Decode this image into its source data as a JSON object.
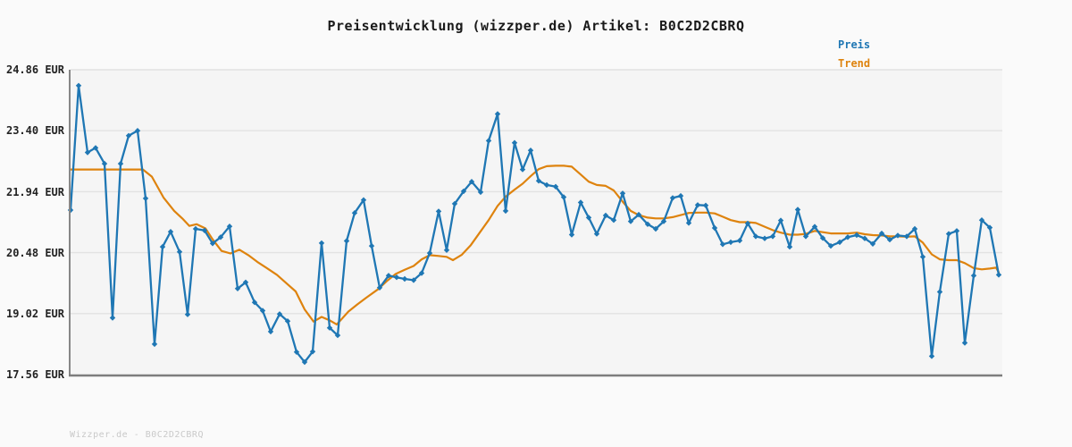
{
  "title": "Preisentwicklung (wizzper.de) Artikel: B0C2D2CBRQ",
  "watermark": "Wizzper.de - B0C2D2CBRQ",
  "legend": [
    {
      "label": "Preis",
      "color": "#1f77b4"
    },
    {
      "label": "Trend",
      "color": "#de830e"
    }
  ],
  "y_axis": {
    "unit": "EUR",
    "labels": [
      "24.86 EUR",
      "23.40 EUR",
      "21.94 EUR",
      "20.48 EUR",
      "19.02 EUR",
      "17.56 EUR"
    ],
    "values": [
      24.86,
      23.4,
      21.94,
      20.48,
      19.02,
      17.56
    ]
  },
  "chart_data": {
    "type": "line",
    "title": "Preisentwicklung (wizzper.de) Artikel: B0C2D2CBRQ",
    "xlabel": "",
    "ylabel": "EUR",
    "ylim": [
      17.56,
      24.86
    ],
    "x_axis_note": "time axis, no tick labels shown; x stored as plot pixel position",
    "grid": true,
    "legend_position": "top-right",
    "series": [
      {
        "name": "Preis",
        "color": "#1f77b4",
        "marker": "diamond",
        "points": [
          [
            79,
            21.5
          ],
          [
            88,
            24.48
          ],
          [
            98,
            22.88
          ],
          [
            107,
            22.99
          ],
          [
            117,
            22.61
          ],
          [
            126,
            18.92
          ],
          [
            135,
            22.61
          ],
          [
            144,
            23.28
          ],
          [
            154,
            23.4
          ],
          [
            163,
            21.78
          ],
          [
            173,
            18.29
          ],
          [
            182,
            20.62
          ],
          [
            191,
            20.98
          ],
          [
            201,
            20.5
          ],
          [
            210,
            19.0
          ],
          [
            219,
            21.05
          ],
          [
            229,
            21.01
          ],
          [
            238,
            20.7
          ],
          [
            247,
            20.85
          ],
          [
            257,
            21.11
          ],
          [
            266,
            19.62
          ],
          [
            275,
            19.77
          ],
          [
            285,
            19.29
          ],
          [
            294,
            19.09
          ],
          [
            303,
            18.59
          ],
          [
            313,
            19.01
          ],
          [
            322,
            18.84
          ],
          [
            332,
            18.1
          ],
          [
            341,
            17.86
          ],
          [
            350,
            18.11
          ],
          [
            360,
            20.71
          ],
          [
            369,
            18.68
          ],
          [
            378,
            18.5
          ],
          [
            388,
            20.76
          ],
          [
            397,
            21.43
          ],
          [
            407,
            21.74
          ],
          [
            416,
            20.64
          ],
          [
            425,
            19.64
          ],
          [
            435,
            19.93
          ],
          [
            444,
            19.89
          ],
          [
            453,
            19.85
          ],
          [
            463,
            19.82
          ],
          [
            472,
            19.99
          ],
          [
            481,
            20.47
          ],
          [
            491,
            21.47
          ],
          [
            500,
            20.54
          ],
          [
            509,
            21.65
          ],
          [
            519,
            21.95
          ],
          [
            528,
            22.18
          ],
          [
            538,
            21.93
          ],
          [
            547,
            23.16
          ],
          [
            557,
            23.8
          ],
          [
            566,
            21.48
          ],
          [
            576,
            23.11
          ],
          [
            585,
            22.47
          ],
          [
            594,
            22.93
          ],
          [
            603,
            22.2
          ],
          [
            612,
            22.1
          ],
          [
            622,
            22.06
          ],
          [
            631,
            21.81
          ],
          [
            640,
            20.91
          ],
          [
            650,
            21.68
          ],
          [
            659,
            21.32
          ],
          [
            668,
            20.93
          ],
          [
            678,
            21.37
          ],
          [
            687,
            21.26
          ],
          [
            697,
            21.9
          ],
          [
            706,
            21.23
          ],
          [
            715,
            21.39
          ],
          [
            725,
            21.16
          ],
          [
            734,
            21.05
          ],
          [
            743,
            21.23
          ],
          [
            753,
            21.79
          ],
          [
            762,
            21.84
          ],
          [
            771,
            21.19
          ],
          [
            781,
            21.62
          ],
          [
            790,
            21.61
          ],
          [
            800,
            21.07
          ],
          [
            809,
            20.68
          ],
          [
            818,
            20.73
          ],
          [
            828,
            20.77
          ],
          [
            837,
            21.18
          ],
          [
            846,
            20.87
          ],
          [
            856,
            20.82
          ],
          [
            865,
            20.87
          ],
          [
            874,
            21.25
          ],
          [
            884,
            20.62
          ],
          [
            893,
            21.51
          ],
          [
            902,
            20.87
          ],
          [
            912,
            21.1
          ],
          [
            921,
            20.83
          ],
          [
            930,
            20.64
          ],
          [
            940,
            20.73
          ],
          [
            949,
            20.85
          ],
          [
            959,
            20.9
          ],
          [
            968,
            20.82
          ],
          [
            977,
            20.69
          ],
          [
            987,
            20.94
          ],
          [
            996,
            20.79
          ],
          [
            1005,
            20.89
          ],
          [
            1015,
            20.87
          ],
          [
            1024,
            21.05
          ],
          [
            1033,
            20.38
          ],
          [
            1043,
            18.0
          ],
          [
            1052,
            19.54
          ],
          [
            1062,
            20.93
          ],
          [
            1071,
            21.0
          ],
          [
            1080,
            18.32
          ],
          [
            1090,
            19.93
          ],
          [
            1099,
            21.26
          ],
          [
            1108,
            21.08
          ],
          [
            1118,
            19.95
          ]
        ]
      },
      {
        "name": "Trend",
        "color": "#de830e",
        "marker": "none",
        "points": [
          [
            79,
            22.47
          ],
          [
            160,
            22.47
          ],
          [
            170,
            22.3
          ],
          [
            183,
            21.8
          ],
          [
            195,
            21.48
          ],
          [
            204,
            21.3
          ],
          [
            212,
            21.12
          ],
          [
            220,
            21.16
          ],
          [
            230,
            21.06
          ],
          [
            238,
            20.8
          ],
          [
            248,
            20.52
          ],
          [
            258,
            20.46
          ],
          [
            268,
            20.55
          ],
          [
            278,
            20.42
          ],
          [
            288,
            20.26
          ],
          [
            298,
            20.12
          ],
          [
            310,
            19.95
          ],
          [
            322,
            19.72
          ],
          [
            331,
            19.55
          ],
          [
            341,
            19.12
          ],
          [
            351,
            18.83
          ],
          [
            360,
            18.94
          ],
          [
            369,
            18.86
          ],
          [
            377,
            18.76
          ],
          [
            390,
            19.07
          ],
          [
            400,
            19.24
          ],
          [
            410,
            19.4
          ],
          [
            423,
            19.6
          ],
          [
            433,
            19.8
          ],
          [
            443,
            19.97
          ],
          [
            453,
            20.07
          ],
          [
            463,
            20.16
          ],
          [
            472,
            20.32
          ],
          [
            481,
            20.42
          ],
          [
            491,
            20.4
          ],
          [
            500,
            20.38
          ],
          [
            507,
            20.3
          ],
          [
            517,
            20.43
          ],
          [
            527,
            20.66
          ],
          [
            537,
            20.96
          ],
          [
            547,
            21.26
          ],
          [
            557,
            21.6
          ],
          [
            566,
            21.82
          ],
          [
            576,
            21.99
          ],
          [
            585,
            22.13
          ],
          [
            594,
            22.31
          ],
          [
            603,
            22.48
          ],
          [
            612,
            22.55
          ],
          [
            622,
            22.56
          ],
          [
            631,
            22.56
          ],
          [
            640,
            22.54
          ],
          [
            650,
            22.35
          ],
          [
            659,
            22.18
          ],
          [
            668,
            22.1
          ],
          [
            678,
            22.08
          ],
          [
            687,
            21.97
          ],
          [
            697,
            21.7
          ],
          [
            706,
            21.48
          ],
          [
            715,
            21.38
          ],
          [
            725,
            21.32
          ],
          [
            734,
            21.3
          ],
          [
            743,
            21.3
          ],
          [
            753,
            21.33
          ],
          [
            762,
            21.38
          ],
          [
            771,
            21.43
          ],
          [
            781,
            21.44
          ],
          [
            790,
            21.44
          ],
          [
            800,
            21.42
          ],
          [
            809,
            21.34
          ],
          [
            818,
            21.26
          ],
          [
            828,
            21.21
          ],
          [
            837,
            21.21
          ],
          [
            846,
            21.19
          ],
          [
            856,
            21.1
          ],
          [
            865,
            21.02
          ],
          [
            874,
            20.96
          ],
          [
            884,
            20.91
          ],
          [
            893,
            20.91
          ],
          [
            902,
            20.93
          ],
          [
            912,
            21.0
          ],
          [
            921,
            20.97
          ],
          [
            930,
            20.94
          ],
          [
            940,
            20.94
          ],
          [
            949,
            20.94
          ],
          [
            959,
            20.96
          ],
          [
            968,
            20.92
          ],
          [
            977,
            20.9
          ],
          [
            987,
            20.89
          ],
          [
            996,
            20.87
          ],
          [
            1005,
            20.87
          ],
          [
            1015,
            20.86
          ],
          [
            1024,
            20.87
          ],
          [
            1033,
            20.72
          ],
          [
            1043,
            20.44
          ],
          [
            1052,
            20.32
          ],
          [
            1062,
            20.3
          ],
          [
            1071,
            20.3
          ],
          [
            1080,
            20.23
          ],
          [
            1090,
            20.11
          ],
          [
            1099,
            20.08
          ],
          [
            1108,
            20.1
          ],
          [
            1115,
            20.12
          ],
          [
            1118,
            20.01
          ]
        ]
      }
    ],
    "colors": {
      "plot_background": "#f5f5f5",
      "page_background": "#fafafa",
      "gridline": "#e2e2e2",
      "axis_spine": "#888888"
    }
  }
}
